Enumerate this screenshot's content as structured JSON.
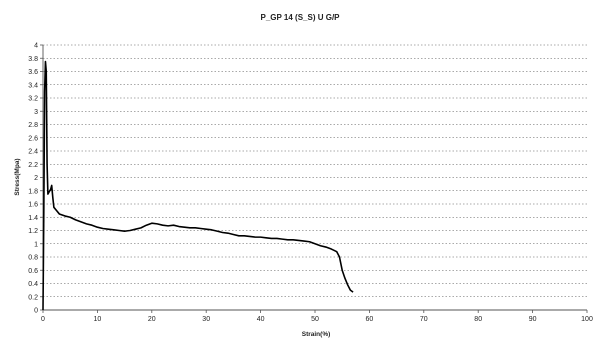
{
  "chart_data": {
    "type": "line",
    "title": "P_GP 14 (S_S) U G/P",
    "xlabel": "Strain(%)",
    "ylabel": "Stress(Mpa)",
    "xlim": [
      0,
      100
    ],
    "ylim": [
      0,
      4
    ],
    "grid": true,
    "x_ticks": [
      "0",
      "10",
      "20",
      "30",
      "40",
      "50",
      "60",
      "70",
      "80",
      "90",
      "100"
    ],
    "y_ticks": [
      "0",
      "0.2",
      "0.4",
      "0.6",
      "0.8",
      "1",
      "1.2",
      "1.4",
      "1.6",
      "1.8",
      "2",
      "2.2",
      "2.4",
      "2.6",
      "2.8",
      "3",
      "3.2",
      "3.4",
      "3.6",
      "3.8",
      "4"
    ],
    "series": [
      {
        "color": "#000000",
        "points": [
          [
            0,
            0
          ],
          [
            0.15,
            1.5
          ],
          [
            0.3,
            3.3
          ],
          [
            0.45,
            3.75
          ],
          [
            0.6,
            3.6
          ],
          [
            0.75,
            2.2
          ],
          [
            0.9,
            1.75
          ],
          [
            1.1,
            1.78
          ],
          [
            1.4,
            1.82
          ],
          [
            1.6,
            1.88
          ],
          [
            1.8,
            1.7
          ],
          [
            2.0,
            1.55
          ],
          [
            2.5,
            1.5
          ],
          [
            3,
            1.45
          ],
          [
            4,
            1.42
          ],
          [
            5,
            1.4
          ],
          [
            6,
            1.36
          ],
          [
            7,
            1.33
          ],
          [
            8,
            1.3
          ],
          [
            9,
            1.28
          ],
          [
            10,
            1.25
          ],
          [
            11,
            1.23
          ],
          [
            12,
            1.22
          ],
          [
            13,
            1.21
          ],
          [
            14,
            1.2
          ],
          [
            15,
            1.19
          ],
          [
            16,
            1.2
          ],
          [
            17,
            1.22
          ],
          [
            18,
            1.24
          ],
          [
            19,
            1.28
          ],
          [
            20,
            1.31
          ],
          [
            21,
            1.3
          ],
          [
            22,
            1.28
          ],
          [
            23,
            1.27
          ],
          [
            24,
            1.28
          ],
          [
            25,
            1.26
          ],
          [
            26,
            1.25
          ],
          [
            27,
            1.24
          ],
          [
            28,
            1.24
          ],
          [
            29,
            1.23
          ],
          [
            30,
            1.22
          ],
          [
            31,
            1.21
          ],
          [
            32,
            1.19
          ],
          [
            33,
            1.17
          ],
          [
            34,
            1.16
          ],
          [
            35,
            1.14
          ],
          [
            36,
            1.12
          ],
          [
            37,
            1.12
          ],
          [
            38,
            1.11
          ],
          [
            39,
            1.1
          ],
          [
            40,
            1.1
          ],
          [
            41,
            1.09
          ],
          [
            42,
            1.08
          ],
          [
            43,
            1.08
          ],
          [
            44,
            1.07
          ],
          [
            45,
            1.06
          ],
          [
            46,
            1.06
          ],
          [
            47,
            1.05
          ],
          [
            48,
            1.04
          ],
          [
            49,
            1.03
          ],
          [
            50,
            1.0
          ],
          [
            51,
            0.97
          ],
          [
            52,
            0.95
          ],
          [
            53,
            0.92
          ],
          [
            54,
            0.88
          ],
          [
            54.5,
            0.8
          ],
          [
            55,
            0.6
          ],
          [
            55.5,
            0.48
          ],
          [
            56,
            0.38
          ],
          [
            56.5,
            0.3
          ],
          [
            57,
            0.27
          ]
        ]
      }
    ]
  }
}
